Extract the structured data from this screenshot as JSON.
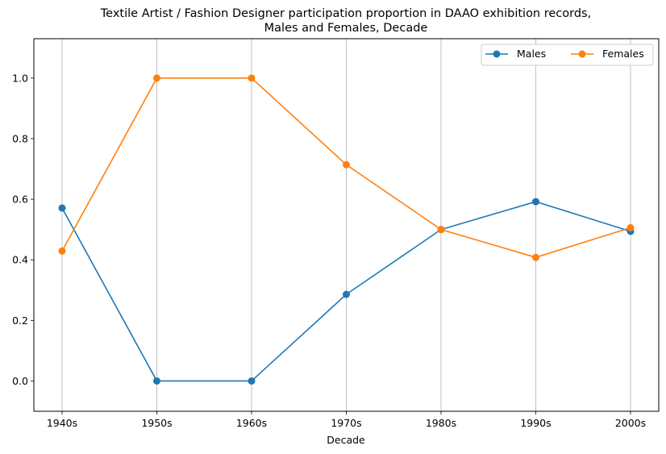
{
  "chart_data": {
    "type": "line",
    "title_line1": "Textile Artist / Fashion Designer participation proportion in DAAO exhibition records,",
    "title_line2": "Males and Females, Decade",
    "xlabel": "Decade",
    "ylabel": "",
    "categories": [
      "1940s",
      "1950s",
      "1960s",
      "1970s",
      "1980s",
      "1990s",
      "2000s"
    ],
    "ylim": [
      -0.1,
      1.13
    ],
    "yticks": [
      0.0,
      0.2,
      0.4,
      0.6,
      0.8,
      1.0
    ],
    "ytick_labels": [
      "0.0",
      "0.2",
      "0.4",
      "0.6",
      "0.8",
      "1.0"
    ],
    "grid": "vertical",
    "legend_position": "top-right",
    "series": [
      {
        "name": "Males",
        "color": "#1f77b4",
        "values": [
          0.571,
          0.0,
          0.0,
          0.286,
          0.5,
          0.592,
          0.494
        ]
      },
      {
        "name": "Females",
        "color": "#ff7f0e",
        "values": [
          0.429,
          1.0,
          1.0,
          0.714,
          0.5,
          0.408,
          0.506
        ]
      }
    ]
  }
}
